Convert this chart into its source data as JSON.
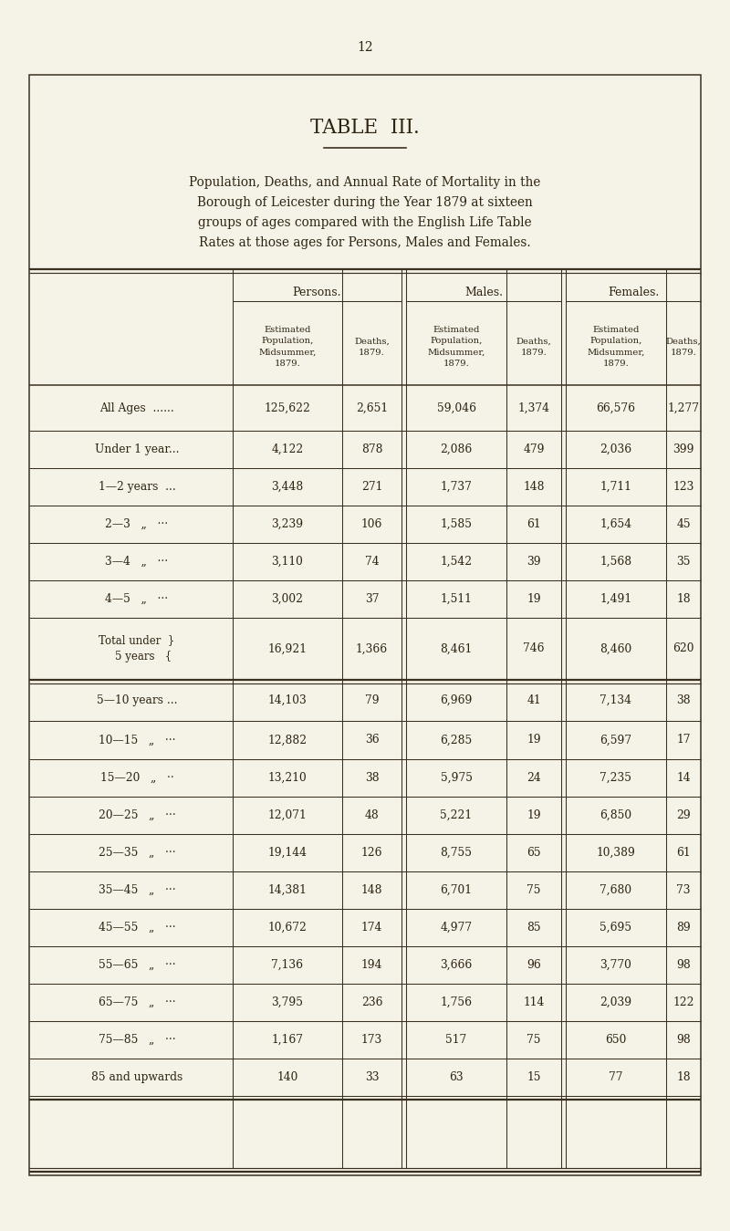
{
  "page_number": "12",
  "title": "TABLE  III.",
  "subtitle_lines": [
    "Population, Deaths, and Annual Rate of Mortality in the",
    "Borough of Leicester during the Year 1879 at sixteen",
    "groups of ages compared with the English Life Table",
    "Rates at those ages for Persons, Males and Females."
  ],
  "col_group_headers": [
    "Persons.",
    "Males.",
    "Females."
  ],
  "col_sub_headers": [
    "Estimated\nPopulation,\nMidsummer,\n1879.",
    "Deaths,\n1879.",
    "Estimated\nPopulation,\nMidsummer,\n1879.",
    "Deaths,\n1879.",
    "Estimated\nPopulation,\nMidsummer,\n1879.",
    "Deaths,\n1879."
  ],
  "rows": [
    {
      "label": "All Ages  ......",
      "brace": false,
      "values": [
        "125,622",
        "2,651",
        "59,046",
        "1,374",
        "66,576",
        "1,277"
      ],
      "double_above": false,
      "double_below": false
    },
    {
      "label": "Under 1 year...",
      "brace": false,
      "values": [
        "4,122",
        "878",
        "2,086",
        "479",
        "2,036",
        "399"
      ],
      "double_above": false,
      "double_below": false
    },
    {
      "label": "1—2 years  ...",
      "brace": false,
      "values": [
        "3,448",
        "271",
        "1,737",
        "148",
        "1,711",
        "123"
      ],
      "double_above": false,
      "double_below": false
    },
    {
      "label": "2—3   „   ···",
      "brace": false,
      "values": [
        "3,239",
        "106",
        "1,585",
        "61",
        "1,654",
        "45"
      ],
      "double_above": false,
      "double_below": false
    },
    {
      "label": "3—4   „   ···",
      "brace": false,
      "values": [
        "3,110",
        "74",
        "1,542",
        "39",
        "1,568",
        "35"
      ],
      "double_above": false,
      "double_below": false
    },
    {
      "label": "4—5   „   ···",
      "brace": false,
      "values": [
        "3,002",
        "37",
        "1,511",
        "19",
        "1,491",
        "18"
      ],
      "double_above": false,
      "double_below": false
    },
    {
      "label": "Total under\n5 years",
      "brace": true,
      "values": [
        "16,921",
        "1,366",
        "8,461",
        "746",
        "8,460",
        "620"
      ],
      "double_above": false,
      "double_below": true
    },
    {
      "label": "5—10 years ...",
      "brace": false,
      "values": [
        "14,103",
        "79",
        "6,969",
        "41",
        "7,134",
        "38"
      ],
      "double_above": true,
      "double_below": false
    },
    {
      "label": "10—15   „   ···",
      "brace": false,
      "values": [
        "12,882",
        "36",
        "6,285",
        "19",
        "6,597",
        "17"
      ],
      "double_above": false,
      "double_below": false
    },
    {
      "label": "15—20   „   ··",
      "brace": false,
      "values": [
        "13,210",
        "38",
        "5,975",
        "24",
        "7,235",
        "14"
      ],
      "double_above": false,
      "double_below": false
    },
    {
      "label": "20—25   „   ···",
      "brace": false,
      "values": [
        "12,071",
        "48",
        "5,221",
        "19",
        "6,850",
        "29"
      ],
      "double_above": false,
      "double_below": false
    },
    {
      "label": "25—35   „   ···",
      "brace": false,
      "values": [
        "19,144",
        "126",
        "8,755",
        "65",
        "10,389",
        "61"
      ],
      "double_above": false,
      "double_below": false
    },
    {
      "label": "35—45   „   ···",
      "brace": false,
      "values": [
        "14,381",
        "148",
        "6,701",
        "75",
        "7,680",
        "73"
      ],
      "double_above": false,
      "double_below": false
    },
    {
      "label": "45—55   „   ···",
      "brace": false,
      "values": [
        "10,672",
        "174",
        "4,977",
        "85",
        "5,695",
        "89"
      ],
      "double_above": false,
      "double_below": false
    },
    {
      "label": "55—65   „   ···",
      "brace": false,
      "values": [
        "7,136",
        "194",
        "3,666",
        "96",
        "3,770",
        "98"
      ],
      "double_above": false,
      "double_below": false
    },
    {
      "label": "65—75   „   ···",
      "brace": false,
      "values": [
        "3,795",
        "236",
        "1,756",
        "114",
        "2,039",
        "122"
      ],
      "double_above": false,
      "double_below": false
    },
    {
      "label": "75—85   „   ···",
      "brace": false,
      "values": [
        "1,167",
        "173",
        "517",
        "75",
        "650",
        "98"
      ],
      "double_above": false,
      "double_below": false
    },
    {
      "label": "85 and upwards",
      "brace": false,
      "values": [
        "140",
        "33",
        "63",
        "15",
        "77",
        "18"
      ],
      "double_above": false,
      "double_below": false
    }
  ],
  "bg_color": "#f5f2e8",
  "text_color": "#2d2410",
  "line_color": "#3a3020"
}
